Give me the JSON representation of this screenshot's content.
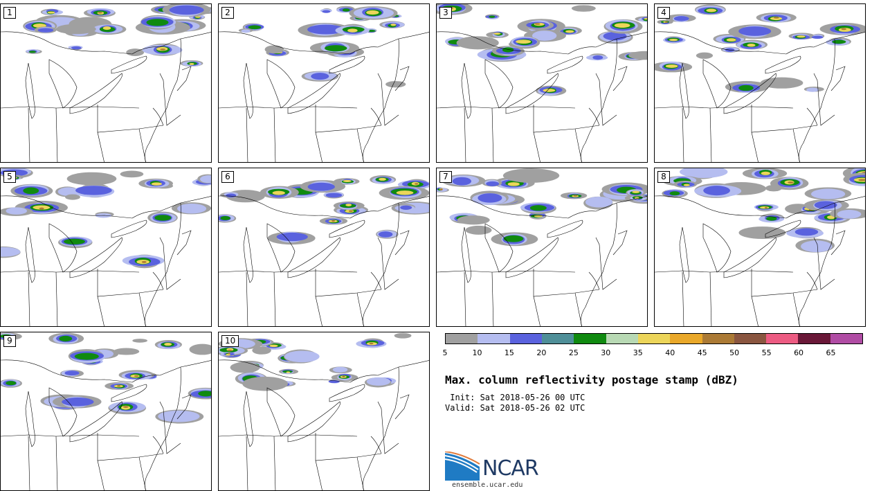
{
  "panels": [
    {
      "label": "1"
    },
    {
      "label": "2"
    },
    {
      "label": "3"
    },
    {
      "label": "4"
    },
    {
      "label": "5"
    },
    {
      "label": "6"
    },
    {
      "label": "7"
    },
    {
      "label": "8"
    },
    {
      "label": "9"
    },
    {
      "label": "10"
    }
  ],
  "colorbar": {
    "colors": [
      "#a0a0a0",
      "#b5bdf0",
      "#5a62de",
      "#4f8f98",
      "#108a10",
      "#b8d9b4",
      "#ecd55a",
      "#e9a82a",
      "#ab7a35",
      "#8a5640",
      "#ec5b82",
      "#6a1838",
      "#b04ca4"
    ],
    "ticks": [
      "5",
      "10",
      "15",
      "20",
      "25",
      "30",
      "35",
      "40",
      "45",
      "50",
      "55",
      "60",
      "65"
    ]
  },
  "title": "Max. column reflectivity postage stamp (dBZ)",
  "init_line": " Init: Sat 2018-05-26 00 UTC",
  "valid_line": "Valid: Sat 2018-05-26 02 UTC",
  "logo": {
    "text": "NCAR",
    "url": "ensemble.ucar.edu",
    "brand_color": "#1f3a64",
    "accent_color": "#1f7bc4"
  },
  "map_style": {
    "line_color": "#000000"
  }
}
